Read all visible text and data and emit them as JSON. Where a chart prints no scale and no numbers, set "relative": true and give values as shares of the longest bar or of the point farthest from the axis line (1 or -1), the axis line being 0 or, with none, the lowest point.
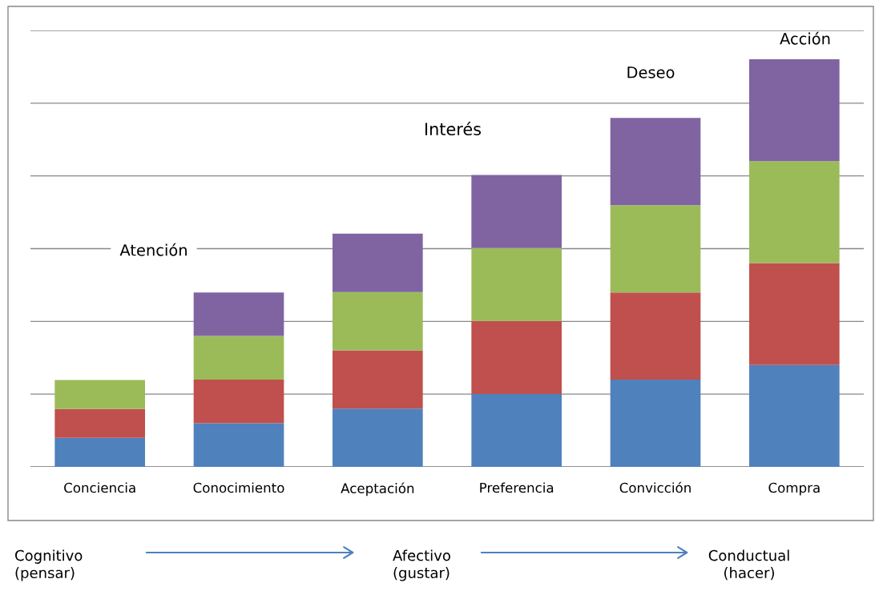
{
  "chart_data": {
    "type": "bar",
    "stacked": true,
    "relative": true,
    "grid": "y",
    "categories": [
      "Conciencia",
      "Conocimiento",
      "Aceptación",
      "Preferencia",
      "Convicción",
      "Compra"
    ],
    "series": [
      {
        "color": "#4f81bd",
        "values": [
          0.071,
          0.107,
          0.143,
          0.179,
          0.214,
          0.25
        ]
      },
      {
        "color": "#c0504d",
        "values": [
          0.071,
          0.107,
          0.143,
          0.179,
          0.214,
          0.25
        ]
      },
      {
        "color": "#9bbb59",
        "values": [
          0.071,
          0.107,
          0.143,
          0.179,
          0.214,
          0.25
        ]
      },
      {
        "color": "#8064a2",
        "values": [
          null,
          0.107,
          0.143,
          0.179,
          0.214,
          0.25
        ]
      }
    ],
    "annotations": [
      "Atención",
      "Interés",
      "Deseo",
      "Acción",
      "Cognitivo\n(pensar)",
      "Afectivo\n(gustar)",
      "Conductual\n(hacer)"
    ]
  }
}
